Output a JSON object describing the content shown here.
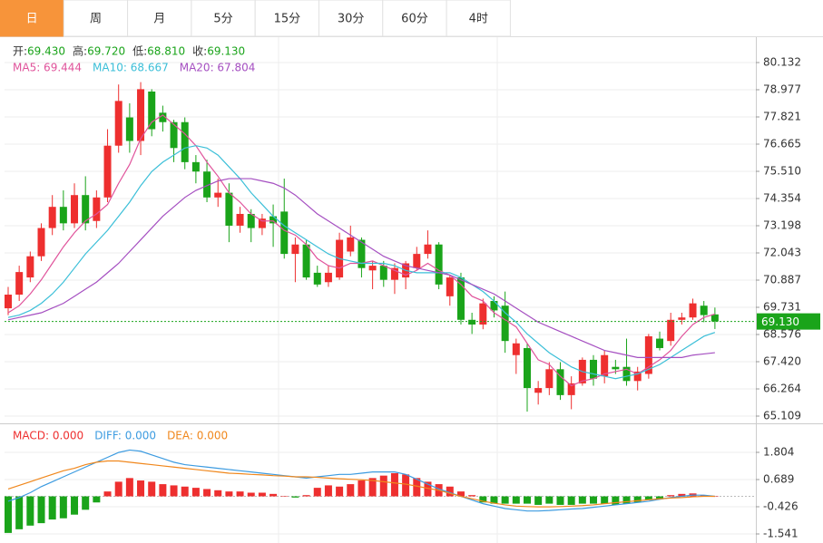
{
  "tabs": [
    "日",
    "周",
    "月",
    "5分",
    "15分",
    "30分",
    "60分",
    "4时"
  ],
  "chart_data": [
    {
      "type": "candlestick",
      "info": [
        {
          "label": "开:",
          "value": "69.430"
        },
        {
          "label": "高:",
          "value": "69.720"
        },
        {
          "label": "低:",
          "value": "68.810"
        },
        {
          "label": "收:",
          "value": "69.130"
        }
      ],
      "ylim": [
        64.878,
        81.249
      ],
      "yticks": [
        80.132,
        78.977,
        77.821,
        76.665,
        {
          "value": 75.51,
          "label": "75.510"
        },
        74.354,
        73.198,
        72.043,
        70.887,
        69.731,
        68.576,
        {
          "value": 67.42,
          "label": "67.420"
        },
        66.264,
        65.109
      ],
      "grid": true,
      "up_color": "#ee2f2f",
      "down_color": "#1aa41a",
      "open": [
        69.69,
        70.27,
        71.0,
        71.9,
        73.1,
        74.0,
        73.3,
        74.5,
        73.4,
        74.4,
        76.6,
        77.8,
        76.8,
        78.9,
        78.0,
        77.6,
        77.6,
        75.9,
        75.5,
        74.4,
        74.6,
        73.2,
        73.7,
        73.1,
        73.6,
        73.8,
        72.0,
        72.4,
        71.2,
        70.8,
        71.0,
        72.1,
        72.6,
        71.3,
        71.5,
        70.9,
        71.0,
        71.4,
        72.0,
        72.4,
        70.2,
        71.0,
        69.2,
        69.0,
        70.0,
        69.8,
        67.7,
        68.0,
        66.1,
        66.3,
        67.1,
        66.0,
        66.5,
        67.5,
        66.8,
        67.2,
        67.2,
        66.6,
        66.9,
        68.4,
        68.3,
        69.2,
        69.3,
        69.8,
        69.43
      ],
      "high": [
        70.6,
        71.5,
        72.1,
        73.3,
        74.5,
        74.7,
        75.0,
        75.3,
        74.7,
        77.3,
        79.2,
        78.4,
        79.3,
        79.0,
        78.3,
        77.7,
        77.8,
        76.2,
        76.0,
        75.2,
        75.0,
        74.0,
        73.9,
        73.7,
        74.1,
        75.2,
        72.7,
        72.6,
        71.5,
        71.5,
        72.9,
        73.2,
        72.7,
        71.7,
        71.7,
        71.6,
        71.7,
        72.3,
        73.0,
        72.5,
        71.1,
        71.2,
        69.5,
        70.1,
        70.2,
        70.4,
        68.4,
        68.2,
        66.6,
        67.4,
        67.4,
        66.8,
        67.6,
        67.7,
        67.9,
        67.5,
        68.4,
        67.2,
        68.6,
        68.7,
        69.5,
        69.5,
        70.1,
        70.0,
        69.72
      ],
      "low": [
        69.4,
        70.0,
        70.8,
        71.7,
        72.8,
        73.0,
        73.1,
        73.0,
        73.1,
        74.2,
        76.3,
        76.3,
        76.2,
        77.0,
        77.2,
        75.9,
        75.6,
        75.0,
        74.2,
        74.0,
        72.5,
        72.9,
        72.5,
        72.8,
        72.3,
        71.8,
        70.8,
        70.9,
        70.6,
        70.6,
        70.9,
        71.9,
        71.0,
        70.5,
        70.6,
        70.3,
        70.5,
        71.3,
        71.8,
        70.5,
        69.8,
        69.0,
        68.6,
        68.8,
        69.3,
        67.8,
        66.9,
        65.3,
        65.6,
        66.0,
        65.8,
        65.4,
        66.4,
        66.4,
        66.5,
        66.9,
        66.4,
        66.2,
        66.7,
        67.9,
        68.1,
        69.0,
        69.2,
        69.1,
        68.81
      ],
      "close": [
        70.27,
        71.23,
        71.9,
        73.1,
        74.0,
        73.3,
        74.5,
        73.3,
        74.4,
        76.6,
        78.5,
        76.8,
        79.0,
        77.3,
        77.6,
        76.5,
        75.9,
        75.5,
        74.4,
        74.6,
        73.2,
        73.7,
        73.1,
        73.5,
        73.3,
        72.0,
        72.4,
        71.0,
        70.7,
        71.2,
        72.6,
        72.7,
        71.4,
        71.5,
        70.9,
        71.4,
        71.6,
        72.0,
        72.4,
        70.7,
        71.0,
        69.2,
        69.0,
        69.9,
        69.6,
        68.3,
        68.2,
        66.3,
        66.3,
        67.1,
        66.0,
        66.5,
        67.5,
        66.7,
        67.7,
        67.1,
        66.6,
        67.0,
        68.5,
        68.0,
        69.2,
        69.3,
        69.9,
        69.4,
        69.13
      ],
      "series": [
        {
          "name": "MA5: 69.444",
          "color": "#e0539b",
          "values": [
            69.5,
            69.8,
            70.3,
            70.9,
            71.6,
            72.3,
            72.9,
            73.4,
            73.7,
            74.1,
            75.0,
            75.8,
            76.9,
            77.6,
            77.9,
            77.5,
            77.1,
            76.6,
            75.9,
            75.3,
            74.6,
            74.2,
            73.7,
            73.4,
            73.4,
            73.0,
            72.8,
            72.4,
            71.8,
            71.5,
            71.4,
            71.6,
            71.6,
            71.7,
            71.5,
            71.3,
            71.1,
            71.3,
            71.6,
            71.3,
            71.1,
            70.7,
            70.2,
            70.0,
            69.5,
            69.2,
            68.9,
            68.2,
            67.5,
            67.3,
            66.8,
            66.4,
            66.6,
            66.7,
            66.9,
            67.0,
            67.1,
            66.9,
            67.2,
            67.5,
            67.9,
            68.5,
            69.0,
            69.3,
            69.444
          ]
        },
        {
          "name": "MA10: 68.667",
          "color": "#3bbfd8",
          "values": [
            69.3,
            69.4,
            69.6,
            69.9,
            70.3,
            70.8,
            71.4,
            72.0,
            72.5,
            73.0,
            73.6,
            74.2,
            74.9,
            75.5,
            75.9,
            76.2,
            76.5,
            76.6,
            76.5,
            76.2,
            75.7,
            75.2,
            74.6,
            74.1,
            73.6,
            73.2,
            72.9,
            72.6,
            72.3,
            72.0,
            71.8,
            71.7,
            71.6,
            71.6,
            71.6,
            71.5,
            71.3,
            71.2,
            71.2,
            71.2,
            71.2,
            71.0,
            70.7,
            70.4,
            70.0,
            69.5,
            69.1,
            68.6,
            68.2,
            67.8,
            67.5,
            67.2,
            67.0,
            66.9,
            66.8,
            66.7,
            66.8,
            66.9,
            67.1,
            67.3,
            67.6,
            67.9,
            68.2,
            68.5,
            68.667
          ]
        },
        {
          "name": "MA20: 67.804",
          "color": "#a54fc1",
          "values": [
            69.2,
            69.3,
            69.4,
            69.5,
            69.7,
            69.9,
            70.2,
            70.5,
            70.8,
            71.2,
            71.6,
            72.1,
            72.6,
            73.1,
            73.6,
            74.0,
            74.4,
            74.7,
            74.9,
            75.1,
            75.2,
            75.2,
            75.2,
            75.1,
            75.0,
            74.8,
            74.5,
            74.1,
            73.7,
            73.4,
            73.1,
            72.8,
            72.5,
            72.2,
            71.9,
            71.7,
            71.5,
            71.4,
            71.3,
            71.2,
            71.1,
            70.9,
            70.7,
            70.5,
            70.3,
            70.0,
            69.7,
            69.4,
            69.1,
            68.9,
            68.7,
            68.5,
            68.3,
            68.1,
            67.9,
            67.8,
            67.7,
            67.6,
            67.6,
            67.6,
            67.6,
            67.6,
            67.7,
            67.75,
            67.804
          ]
        }
      ],
      "last": 69.13,
      "last_label": "69.130",
      "last_color": "#1aa41a"
    },
    {
      "type": "macd",
      "ylim": [
        -1.913,
        2.882
      ],
      "yticks": [
        1.804,
        0.689,
        -0.426,
        -1.541
      ],
      "up_color": "#ee2f2f",
      "down_color": "#1aa41a",
      "series": [
        {
          "name": "MACD: 0.000",
          "color": "#ee2f2f",
          "values": [
            -1.5,
            -1.35,
            -1.2,
            -1.1,
            -0.95,
            -0.9,
            -0.75,
            -0.55,
            -0.25,
            0.2,
            0.6,
            0.75,
            0.65,
            0.6,
            0.5,
            0.45,
            0.4,
            0.35,
            0.3,
            0.25,
            0.2,
            0.2,
            0.15,
            0.15,
            0.1,
            0.02,
            -0.05,
            0.05,
            0.35,
            0.45,
            0.4,
            0.5,
            0.65,
            0.75,
            0.85,
            0.95,
            0.9,
            0.75,
            0.6,
            0.5,
            0.4,
            0.2,
            0.05,
            -0.25,
            -0.3,
            -0.3,
            -0.3,
            -0.3,
            -0.35,
            -0.3,
            -0.35,
            -0.35,
            -0.3,
            -0.3,
            -0.3,
            -0.35,
            -0.3,
            -0.25,
            -0.15,
            -0.1,
            0.05,
            0.1,
            0.12,
            0.05,
            0.0
          ]
        },
        {
          "name": "DIFF: 0.000",
          "color": "#3c9be0",
          "values": [
            -0.2,
            -0.05,
            0.15,
            0.4,
            0.6,
            0.8,
            1.0,
            1.2,
            1.4,
            1.6,
            1.8,
            1.9,
            1.85,
            1.7,
            1.55,
            1.4,
            1.3,
            1.25,
            1.2,
            1.15,
            1.1,
            1.05,
            1.0,
            0.95,
            0.9,
            0.85,
            0.8,
            0.75,
            0.8,
            0.85,
            0.9,
            0.9,
            0.95,
            1.0,
            1.0,
            1.0,
            0.9,
            0.7,
            0.5,
            0.3,
            0.15,
            0.0,
            -0.15,
            -0.3,
            -0.4,
            -0.5,
            -0.55,
            -0.6,
            -0.6,
            -0.58,
            -0.55,
            -0.52,
            -0.5,
            -0.45,
            -0.4,
            -0.35,
            -0.3,
            -0.25,
            -0.2,
            -0.12,
            -0.05,
            0.0,
            0.05,
            0.05,
            0.0
          ]
        },
        {
          "name": "DEA: 0.000",
          "color": "#f0871c",
          "values": [
            0.3,
            0.45,
            0.6,
            0.75,
            0.9,
            1.05,
            1.15,
            1.3,
            1.4,
            1.45,
            1.45,
            1.4,
            1.35,
            1.3,
            1.25,
            1.2,
            1.15,
            1.1,
            1.05,
            1.0,
            0.95,
            0.93,
            0.9,
            0.88,
            0.85,
            0.83,
            0.8,
            0.8,
            0.78,
            0.75,
            0.72,
            0.7,
            0.68,
            0.65,
            0.6,
            0.55,
            0.5,
            0.42,
            0.33,
            0.25,
            0.12,
            0.0,
            -0.1,
            -0.2,
            -0.28,
            -0.35,
            -0.4,
            -0.42,
            -0.43,
            -0.43,
            -0.42,
            -0.4,
            -0.38,
            -0.35,
            -0.3,
            -0.26,
            -0.22,
            -0.18,
            -0.14,
            -0.1,
            -0.07,
            -0.05,
            -0.02,
            0.0,
            0.0
          ]
        }
      ]
    }
  ]
}
